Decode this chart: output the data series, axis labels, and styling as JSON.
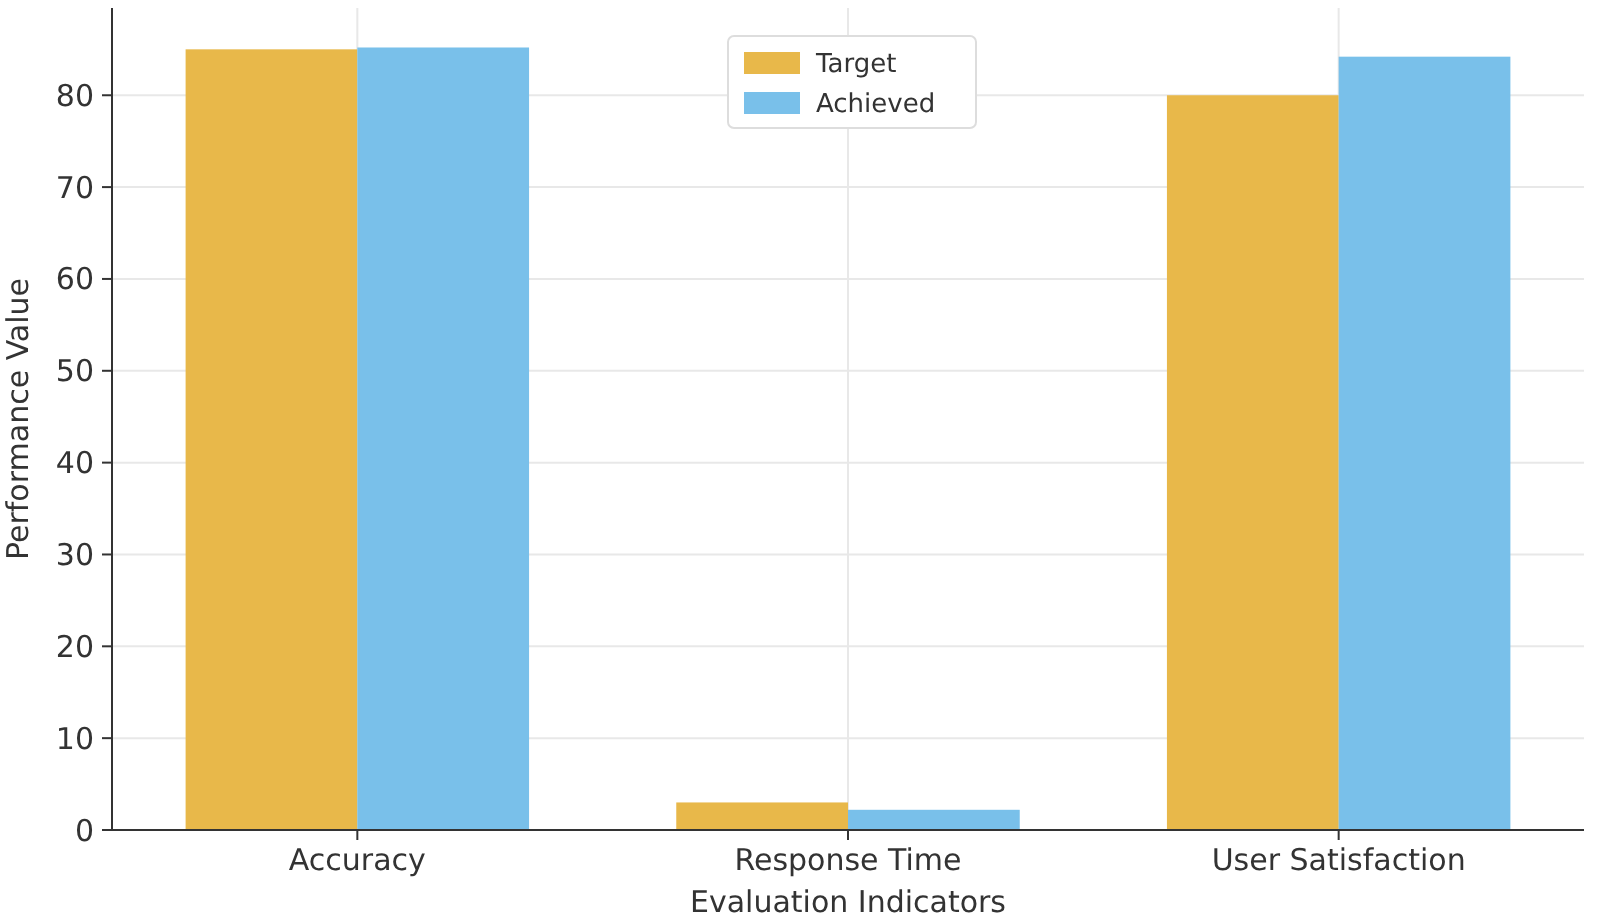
{
  "chart_data": {
    "type": "bar",
    "xlabel": "Evaluation Indicators",
    "ylabel": "Performance Value",
    "categories": [
      "Accuracy",
      "Response Time",
      "User Satisfaction"
    ],
    "series": [
      {
        "name": "Target",
        "color": "#e8b84a",
        "values": [
          85,
          3,
          80
        ]
      },
      {
        "name": "Achieved",
        "color": "#79c0ea",
        "values": [
          85.2,
          2.2,
          84.2
        ]
      }
    ],
    "ylim": [
      0,
      89.5
    ],
    "yticks": [
      0,
      10,
      20,
      30,
      40,
      50,
      60,
      70,
      80
    ],
    "grid": true,
    "legend": "top"
  }
}
